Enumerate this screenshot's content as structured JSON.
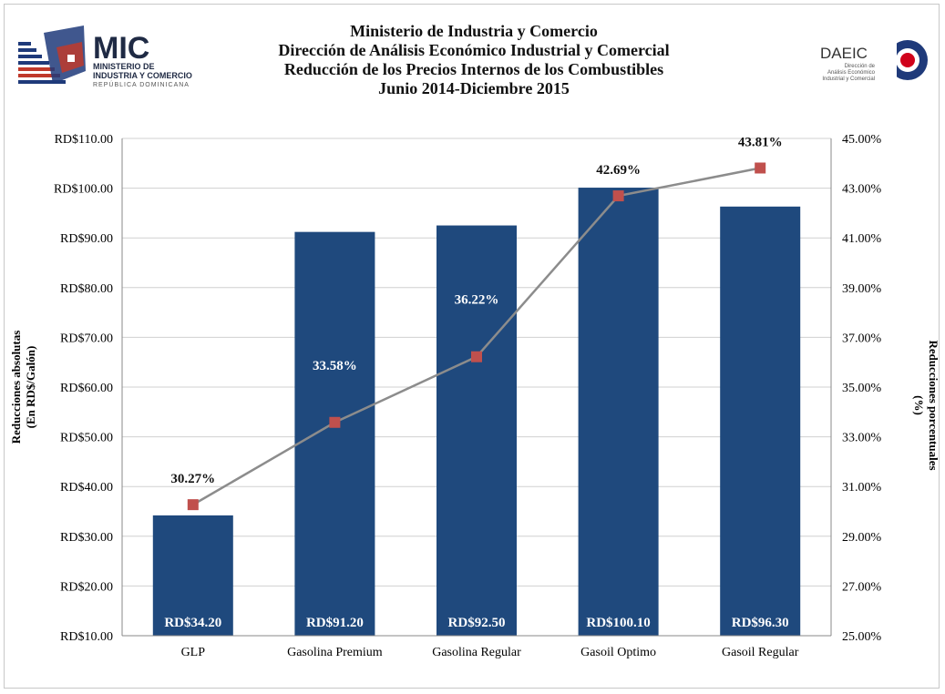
{
  "header": {
    "title_lines": [
      "Ministerio de Industria y Comercio",
      "Dirección de Análisis Económico Industrial y Comercial",
      "Reducción de los Precios Internos de los Combustibles",
      "Junio 2014-Diciembre 2015"
    ]
  },
  "logos": {
    "mic": {
      "abbr": "MIC",
      "line1": "MINISTERIO DE",
      "line2": "INDUSTRIA Y COMERCIO",
      "line3": "REPÚBLICA DOMINICANA"
    },
    "daeic": {
      "abbr": "DAEIC",
      "line1": "Dirección de",
      "line2": "Análisis Económico",
      "line3": "Industrial y Comercial"
    }
  },
  "colors": {
    "bar": "#1f497d",
    "line": "#8c8c8c",
    "marker": "#c0504d",
    "grid": "#d0d0d0",
    "mic_red": "#c0392b",
    "mic_blue": "#1f3a7a"
  },
  "chart_data": {
    "type": "bar",
    "categories": [
      "GLP",
      "Gasolina Premium",
      "Gasolina Regular",
      "Gasoil Optimo",
      "Gasoil Regular"
    ],
    "series": [
      {
        "type": "bar",
        "axis": "left",
        "values": [
          34.2,
          91.2,
          92.5,
          100.1,
          96.3
        ],
        "data_labels": [
          "RD$34.20",
          "RD$91.20",
          "RD$92.50",
          "RD$100.10",
          "RD$96.30"
        ]
      },
      {
        "type": "line",
        "axis": "right",
        "values": [
          30.27,
          33.58,
          36.22,
          42.69,
          43.81
        ],
        "data_labels": [
          "30.27%",
          "33.58%",
          "36.22%",
          "42.69%",
          "43.81%"
        ]
      }
    ],
    "y_left": {
      "label_lines": [
        "Reducciones absolutas",
        "(En RD$/Galón)"
      ],
      "min": 10,
      "max": 110,
      "step": 10,
      "tick_labels": [
        "RD$10.00",
        "RD$20.00",
        "RD$30.00",
        "RD$40.00",
        "RD$50.00",
        "RD$60.00",
        "RD$70.00",
        "RD$80.00",
        "RD$90.00",
        "RD$100.00",
        "RD$110.00"
      ]
    },
    "y_right": {
      "label_lines": [
        "Reducciones porcentuales",
        "(%)"
      ],
      "min": 25,
      "max": 45,
      "step": 2,
      "tick_labels": [
        "25.00%",
        "27.00%",
        "29.00%",
        "31.00%",
        "33.00%",
        "35.00%",
        "37.00%",
        "39.00%",
        "41.00%",
        "43.00%",
        "45.00%"
      ]
    },
    "grid": true,
    "legend": "none"
  }
}
